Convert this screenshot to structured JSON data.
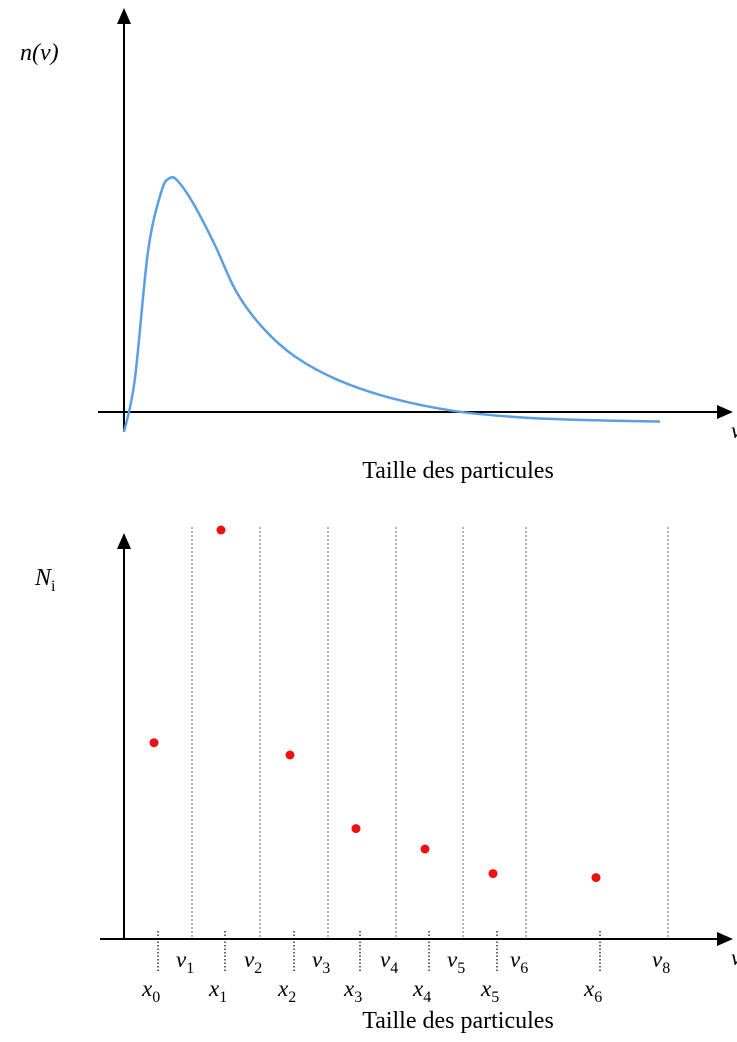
{
  "colors": {
    "curve": "#5b9ee6",
    "points": "#ee1111",
    "axes": "#000000"
  },
  "top_chart": {
    "y_label_main": "n",
    "y_label_paren": "(",
    "y_label_var": "v",
    "y_label_close": ")",
    "x_axis_end_label": "v",
    "caption": "Taille des particules",
    "curve": [
      [
        0,
        0.0
      ],
      [
        0.02,
        0.2
      ],
      [
        0.045,
        0.7
      ],
      [
        0.07,
        0.93
      ],
      [
        0.085,
        0.98
      ],
      [
        0.1,
        0.97
      ],
      [
        0.13,
        0.88
      ],
      [
        0.17,
        0.72
      ],
      [
        0.21,
        0.54
      ],
      [
        0.26,
        0.4
      ],
      [
        0.32,
        0.29
      ],
      [
        0.4,
        0.2
      ],
      [
        0.5,
        0.13
      ],
      [
        0.62,
        0.08
      ],
      [
        0.75,
        0.055
      ],
      [
        0.88,
        0.045
      ],
      [
        1.0,
        0.04
      ]
    ]
  },
  "bottom_chart": {
    "y_label_main": "N",
    "y_label_sub": "i",
    "x_axis_end_label": "v",
    "caption": "Taille des particules",
    "v_labels": [
      {
        "main": "v",
        "sub": "1"
      },
      {
        "main": "v",
        "sub": "2"
      },
      {
        "main": "v",
        "sub": "3"
      },
      {
        "main": "v",
        "sub": "4"
      },
      {
        "main": "v",
        "sub": "5"
      },
      {
        "main": "v",
        "sub": "6"
      },
      {
        "main": "v",
        "sub": "8"
      }
    ],
    "x_labels": [
      {
        "main": "x",
        "sub": "0"
      },
      {
        "main": "x",
        "sub": "1"
      },
      {
        "main": "x",
        "sub": "2"
      },
      {
        "main": "x",
        "sub": "3"
      },
      {
        "main": "x",
        "sub": "4"
      },
      {
        "main": "x",
        "sub": "5"
      },
      {
        "main": "x",
        "sub": "6"
      }
    ],
    "points": [
      0.48,
      1.0,
      0.45,
      0.27,
      0.22,
      0.16,
      0.15
    ]
  }
}
